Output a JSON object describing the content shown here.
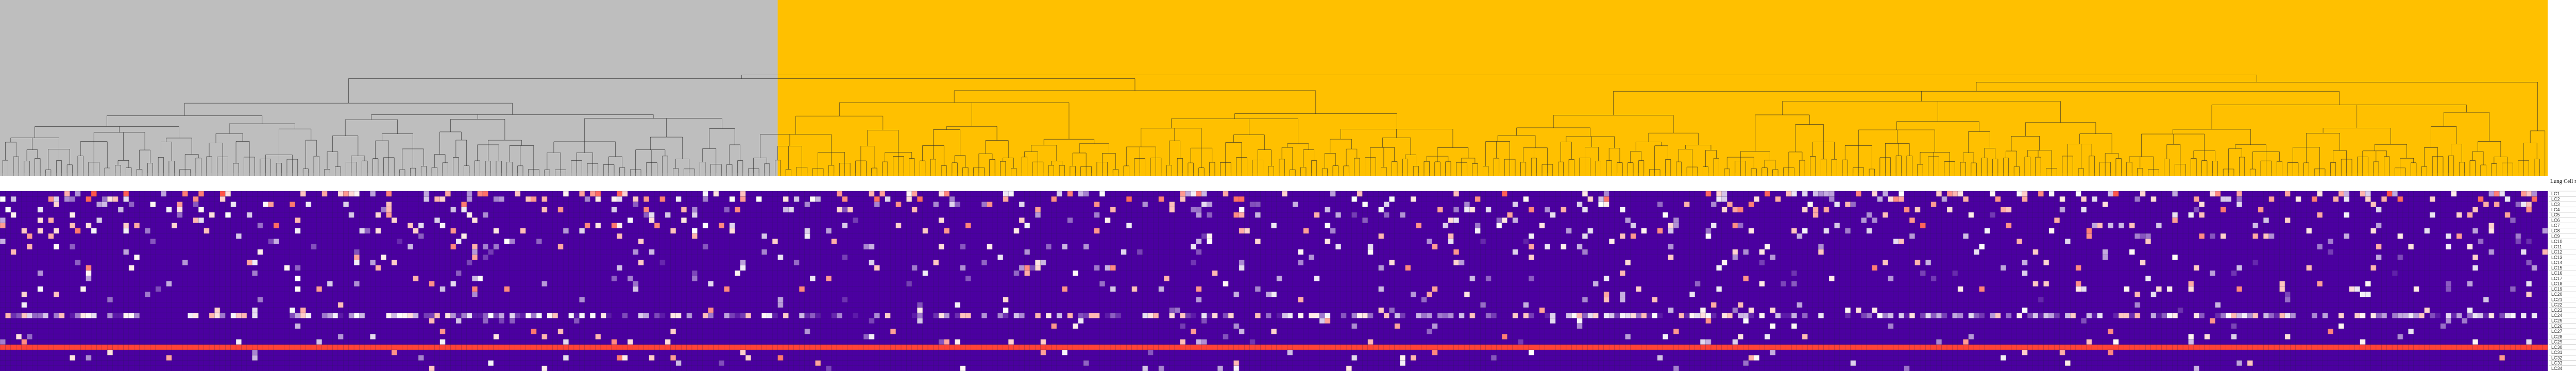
{
  "chart_data": {
    "type": "heatmap",
    "title": "",
    "xlabel": "",
    "ylabel": "",
    "legend_title": "Lung Cell names",
    "dendrogram": {
      "type": "dendrogram",
      "leaf_count": 475,
      "clusters": [
        {
          "name": "",
          "color": "#bebebe",
          "leaf_range": [
            0,
            145
          ]
        },
        {
          "name": "",
          "color": "#ffc000",
          "leaf_range": [
            145,
            475
          ]
        }
      ]
    },
    "heatmap": {
      "n_columns": 475,
      "row_labels": [
        "LC1",
        "LC2",
        "LC3",
        "LC4",
        "LC5",
        "LC6",
        "LC7",
        "LC8",
        "LC9",
        "LC10",
        "LC11",
        "LC12",
        "LC13",
        "LC14",
        "LC15",
        "LC16",
        "LC17",
        "LC18",
        "LC19",
        "LC20",
        "LC21",
        "LC22",
        "LC23",
        "LC24",
        "LC25",
        "LC26",
        "LC27",
        "LC28",
        "LC29",
        "LC30",
        "LC31",
        "LC32",
        "LC33",
        "LC34"
      ],
      "color_scale": [
        "#4b00a0",
        "#ffffff",
        "#ff3b2f"
      ],
      "value_range": [
        0,
        1
      ],
      "background_value": 0,
      "row_profiles": [
        {
          "row": 0,
          "density": 0.22,
          "mean": 0.6
        },
        {
          "row": 1,
          "density": 0.18,
          "mean": 0.55
        },
        {
          "row": 2,
          "density": 0.14,
          "mean": 0.5
        },
        {
          "row": 3,
          "density": 0.12,
          "mean": 0.5
        },
        {
          "row": 4,
          "density": 0.1,
          "mean": 0.45
        },
        {
          "row": 5,
          "density": 0.08,
          "mean": 0.45
        },
        {
          "row": 6,
          "density": 0.12,
          "mean": 0.55
        },
        {
          "row": 7,
          "density": 0.09,
          "mean": 0.5
        },
        {
          "row": 8,
          "density": 0.07,
          "mean": 0.45
        },
        {
          "row": 9,
          "density": 0.06,
          "mean": 0.4
        },
        {
          "row": 10,
          "density": 0.08,
          "mean": 0.5
        },
        {
          "row": 11,
          "density": 0.07,
          "mean": 0.45
        },
        {
          "row": 12,
          "density": 0.05,
          "mean": 0.45
        },
        {
          "row": 13,
          "density": 0.06,
          "mean": 0.4
        },
        {
          "row": 14,
          "density": 0.07,
          "mean": 0.5
        },
        {
          "row": 15,
          "density": 0.05,
          "mean": 0.4
        },
        {
          "row": 16,
          "density": 0.06,
          "mean": 0.45
        },
        {
          "row": 17,
          "density": 0.05,
          "mean": 0.45
        },
        {
          "row": 18,
          "density": 0.08,
          "mean": 0.5
        },
        {
          "row": 19,
          "density": 0.05,
          "mean": 0.4
        },
        {
          "row": 20,
          "density": 0.04,
          "mean": 0.4
        },
        {
          "row": 21,
          "density": 0.06,
          "mean": 0.45
        },
        {
          "row": 22,
          "density": 0.05,
          "mean": 0.45
        },
        {
          "row": 23,
          "density": 0.62,
          "mean": 0.35
        },
        {
          "row": 24,
          "density": 0.05,
          "mean": 0.45
        },
        {
          "row": 25,
          "density": 0.04,
          "mean": 0.45
        },
        {
          "row": 26,
          "density": 0.03,
          "mean": 0.5
        },
        {
          "row": 27,
          "density": 0.04,
          "mean": 0.5
        },
        {
          "row": 28,
          "density": 0.05,
          "mean": 0.45
        },
        {
          "row": 29,
          "density": 1.0,
          "mean": 0.98
        },
        {
          "row": 30,
          "density": 0.03,
          "mean": 0.5
        },
        {
          "row": 31,
          "density": 0.05,
          "mean": 0.5
        },
        {
          "row": 32,
          "density": 0.04,
          "mean": 0.45
        },
        {
          "row": 33,
          "density": 0.03,
          "mean": 0.45
        }
      ]
    }
  }
}
